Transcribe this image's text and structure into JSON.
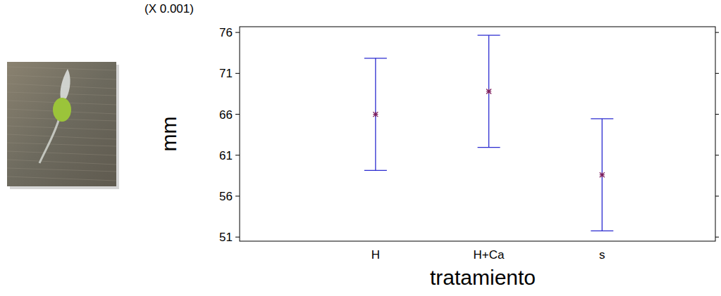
{
  "chart_data": {
    "type": "errorbar",
    "x_label": "tratamiento",
    "y_label": "mm",
    "annotations": [
      "(X 0.001)"
    ],
    "categories": [
      "H",
      "H+Ca",
      "s"
    ],
    "values": [
      66,
      68.8,
      58.6
    ],
    "errors": [
      6.85,
      6.85,
      6.85
    ],
    "color": "#2b2bd0",
    "marker": "asterisk",
    "ylim": [
      50.5,
      76.7
    ],
    "yticks": [
      51,
      56,
      61,
      66,
      71,
      76
    ]
  }
}
